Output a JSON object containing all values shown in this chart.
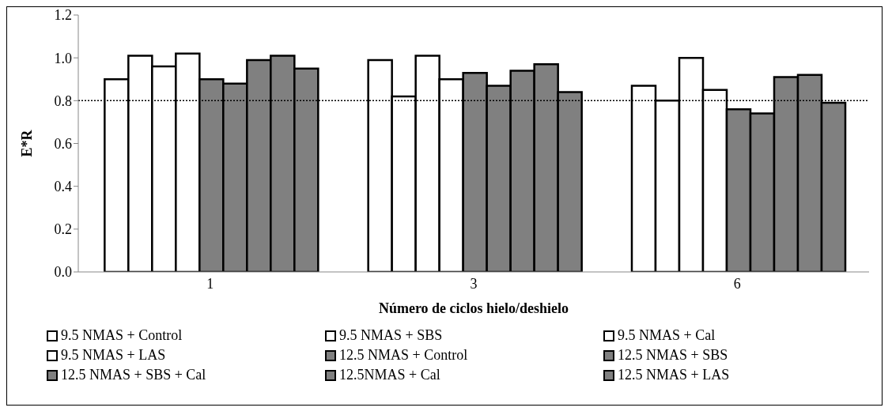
{
  "chart_data": {
    "type": "bar",
    "xlabel": "Número de ciclos hielo/deshielo",
    "ylabel": "E*R",
    "categories": [
      "1",
      "3",
      "6"
    ],
    "series": [
      {
        "name": "9.5 NMAS + Control",
        "color": "#ffffff",
        "values": [
          0.9,
          0.99,
          0.87
        ]
      },
      {
        "name": "9.5 NMAS + SBS",
        "color": "#ffffff",
        "values": [
          1.01,
          0.82,
          0.8
        ]
      },
      {
        "name": "9.5 NMAS + Cal",
        "color": "#ffffff",
        "values": [
          0.96,
          1.01,
          1.0
        ]
      },
      {
        "name": "9.5 NMAS + LAS",
        "color": "#ffffff",
        "values": [
          1.02,
          0.9,
          0.85
        ]
      },
      {
        "name": "12.5 NMAS + Control",
        "color": "#808080",
        "values": [
          0.9,
          0.93,
          0.76
        ]
      },
      {
        "name": "12.5 NMAS + SBS",
        "color": "#808080",
        "values": [
          0.88,
          0.87,
          0.74
        ]
      },
      {
        "name": "12.5 NMAS + SBS + Cal",
        "color": "#808080",
        "values": [
          0.99,
          0.94,
          0.91
        ]
      },
      {
        "name": "12.5NMAS + Cal",
        "color": "#808080",
        "values": [
          1.01,
          0.97,
          0.92
        ]
      },
      {
        "name": "12.5 NMAS + LAS",
        "color": "#808080",
        "values": [
          0.95,
          0.84,
          0.79
        ]
      }
    ],
    "ylim": [
      0,
      1.2
    ],
    "yticks": [
      {
        "value": 0,
        "label": "0.0"
      },
      {
        "value": 0.2,
        "label": "0.2"
      },
      {
        "value": 0.4,
        "label": "0.4"
      },
      {
        "value": 0.6,
        "label": "0.6"
      },
      {
        "value": 0.8,
        "label": "0.8"
      },
      {
        "value": 1,
        "label": "1.0"
      },
      {
        "value": 1.2,
        "label": "1.2"
      }
    ],
    "ref_lines": [
      {
        "axis": "y",
        "value": 0.8,
        "line_style": "dotted",
        "color": "#000000"
      }
    ],
    "grid": false,
    "legend": "bottom"
  }
}
